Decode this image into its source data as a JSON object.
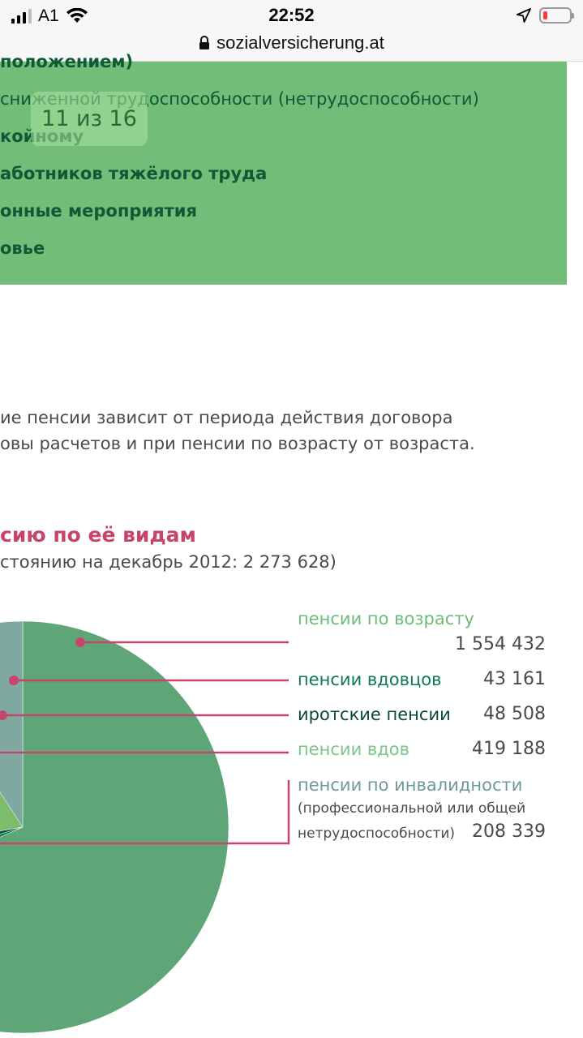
{
  "status_bar": {
    "carrier": "A1",
    "time": "22:52"
  },
  "browser": {
    "url": "sozialversicherung.at"
  },
  "menu": {
    "items": [
      "положением)",
      "сниженной трудоспособности (нетрудоспособности)",
      "койному",
      "аботников тяжёлого труда",
      "онные мероприятия",
      "овье"
    ],
    "find_counter": "11 из 16"
  },
  "paragraph": {
    "line1": "ие пенсии зависит от периода действия договора",
    "line2": "овы расчетов и при пенсии по возрасту от возраста."
  },
  "chart_data": {
    "type": "pie",
    "title": "сию по её видам",
    "subtitle": "стоянию на декабрь 2012: 2 273 628)",
    "categories": [
      "пенсии по возрасту",
      "пенсии вдовцов",
      "иротские пенсии",
      "пенсии вдов",
      "пенсии по инвалидности"
    ],
    "values": [
      1554432,
      43161,
      48508,
      419188,
      208339
    ],
    "value_labels": [
      "1 554 432",
      "43 161",
      "48 508",
      "419 188",
      "208 339"
    ],
    "note_line1": "(профессиональной или общей",
    "note_line2": "нетрудоспособности)",
    "colors": [
      "#5ea677",
      "#117a55",
      "#0d4f3e",
      "#7cbd6b",
      "#7ea8a0"
    ],
    "label_colors": [
      "#6fba7a",
      "#0e7a52",
      "#0b4a36",
      "#7cc487",
      "#6e9a99"
    ],
    "leader_color": "#c6466b"
  }
}
